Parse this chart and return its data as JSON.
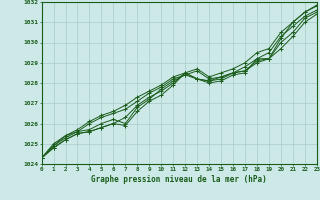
{
  "xlabel": "Graphe pression niveau de la mer (hPa)",
  "ylim": [
    1024,
    1032
  ],
  "xlim": [
    0,
    23
  ],
  "yticks": [
    1024,
    1025,
    1026,
    1027,
    1028,
    1029,
    1030,
    1031,
    1032
  ],
  "xticks": [
    0,
    1,
    2,
    3,
    4,
    5,
    6,
    7,
    8,
    9,
    10,
    11,
    12,
    13,
    14,
    15,
    16,
    17,
    18,
    19,
    20,
    21,
    22,
    23
  ],
  "bg_color": "#cce9e8",
  "line_color": "#1a5c1a",
  "grid_color": "#aacccc",
  "series": [
    [
      1024.3,
      1024.8,
      1025.2,
      1025.5,
      1025.6,
      1025.8,
      1026.0,
      1026.3,
      1026.9,
      1027.3,
      1027.6,
      1028.0,
      1028.5,
      1028.2,
      1028.1,
      1028.2,
      1028.5,
      1028.6,
      1029.1,
      1029.2,
      1030.2,
      1031.0,
      1031.5,
      1031.8
    ],
    [
      1024.3,
      1024.8,
      1025.2,
      1025.5,
      1025.6,
      1025.8,
      1026.0,
      1025.9,
      1026.6,
      1027.1,
      1027.4,
      1027.9,
      1028.5,
      1028.2,
      1028.0,
      1028.1,
      1028.4,
      1028.5,
      1029.2,
      1029.2,
      1029.7,
      1030.3,
      1031.0,
      1031.4
    ],
    [
      1024.3,
      1024.9,
      1025.3,
      1025.6,
      1025.7,
      1026.0,
      1026.2,
      1026.0,
      1026.8,
      1027.2,
      1027.7,
      1028.1,
      1028.4,
      1028.2,
      1028.1,
      1028.3,
      1028.5,
      1028.6,
      1029.0,
      1029.2,
      1030.0,
      1030.5,
      1031.2,
      1031.5
    ],
    [
      1024.3,
      1024.9,
      1025.4,
      1025.6,
      1026.0,
      1026.3,
      1026.5,
      1026.7,
      1027.1,
      1027.5,
      1027.8,
      1028.2,
      1028.4,
      1028.6,
      1028.2,
      1028.3,
      1028.5,
      1028.8,
      1029.2,
      1029.5,
      1030.3,
      1030.8,
      1031.3,
      1031.6
    ],
    [
      1024.3,
      1025.0,
      1025.4,
      1025.7,
      1026.1,
      1026.4,
      1026.6,
      1026.9,
      1027.3,
      1027.6,
      1027.9,
      1028.3,
      1028.5,
      1028.7,
      1028.3,
      1028.5,
      1028.7,
      1029.0,
      1029.5,
      1029.7,
      1030.5,
      1031.0,
      1031.5,
      1031.85
    ]
  ]
}
